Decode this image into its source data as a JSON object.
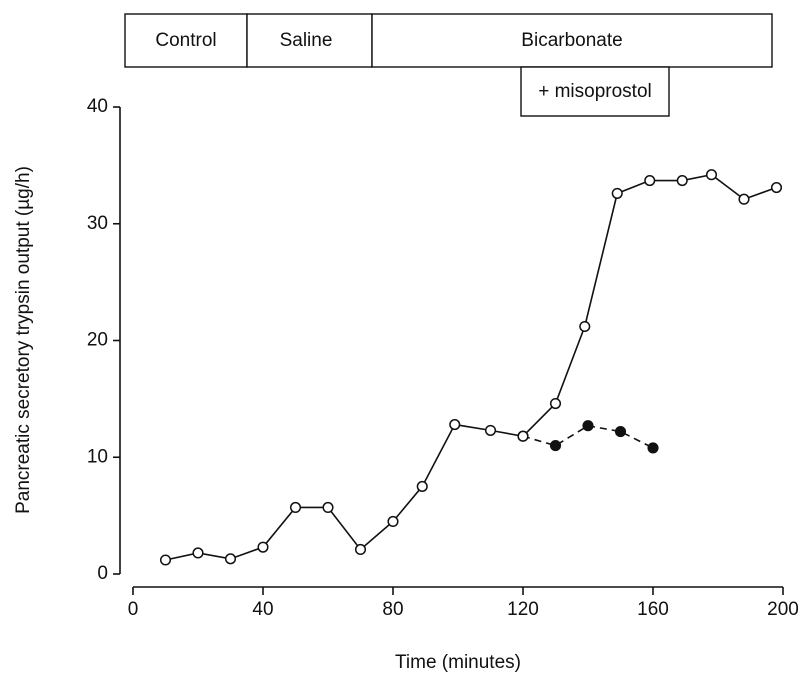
{
  "chart_data": {
    "type": "line",
    "xlabel": "Time (minutes)",
    "ylabel": "Pancreatic secretory trypsin output (µg/h)",
    "phases": [
      "Control",
      "Saline",
      "Bicarbonate"
    ],
    "annotation": "+ misoprostol",
    "xlim": [
      0,
      200
    ],
    "xticks": [
      0,
      40,
      80,
      120,
      160,
      200
    ],
    "ylim": [
      0,
      40
    ],
    "yticks": [
      0,
      10,
      20,
      30,
      40
    ],
    "series": [
      {
        "color": "#111111",
        "marker": "filled",
        "dashed": true,
        "x": [
          120,
          130,
          140,
          150,
          160
        ],
        "values": [
          11.8,
          11.0,
          12.7,
          12.2,
          10.8
        ]
      },
      {
        "color": "#111111",
        "marker": "open",
        "dashed": false,
        "x": [
          10,
          20,
          30,
          40,
          50,
          60,
          70,
          80,
          89,
          99,
          110,
          120,
          130,
          139,
          149,
          159,
          169,
          178,
          188,
          198
        ],
        "values": [
          1.2,
          1.8,
          1.3,
          2.3,
          5.7,
          5.7,
          2.1,
          4.5,
          7.5,
          12.8,
          12.3,
          11.8,
          14.6,
          21.2,
          32.6,
          33.7,
          33.7,
          34.2,
          32.1,
          33.1
        ]
      }
    ]
  }
}
